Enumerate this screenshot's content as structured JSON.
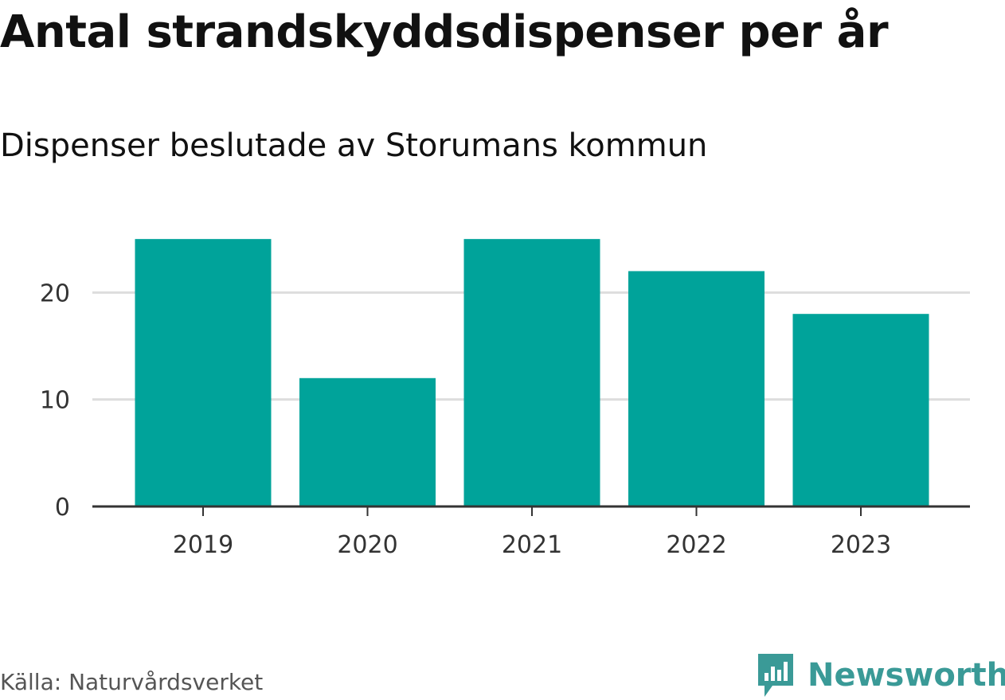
{
  "title": "Antal strandskyddsdispenser per år",
  "subtitle": "Dispenser beslutade av Storumans kommun",
  "source": "Källa: Naturvårdsverket",
  "brand": "Newsworthy",
  "colors": {
    "bar": "#00a39a",
    "grid": "#dddddd",
    "axis": "#333333",
    "brand": "#3a9a97"
  },
  "chart_data": {
    "type": "bar",
    "title": "Antal strandskyddsdispenser per år",
    "subtitle": "Dispenser beslutade av Storumans kommun",
    "categories": [
      "2019",
      "2020",
      "2021",
      "2022",
      "2023"
    ],
    "values": [
      25,
      12,
      25,
      22,
      18
    ],
    "ylim": [
      0,
      26.5
    ],
    "yticks": [
      0,
      10,
      20
    ],
    "xlabel": "",
    "ylabel": "",
    "grid": true
  }
}
